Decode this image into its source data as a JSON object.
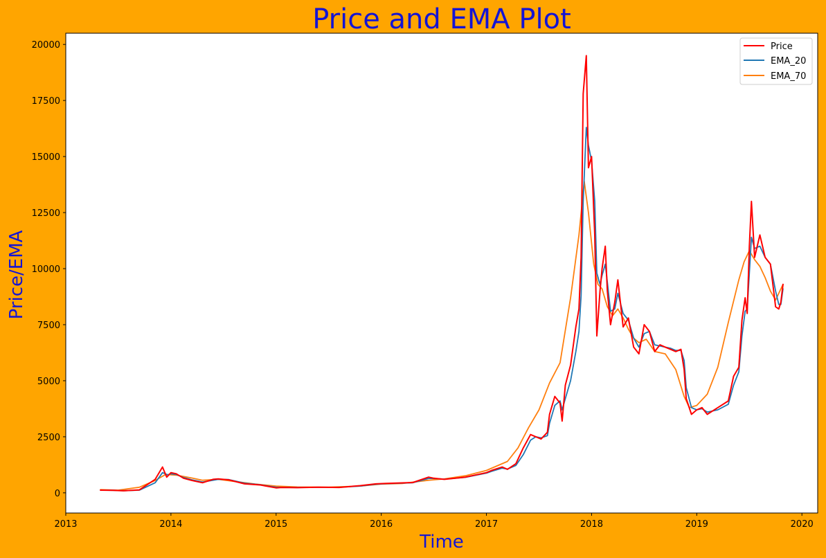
{
  "colors": {
    "background": "#ffa500",
    "plot_background": "#ffffff",
    "title": "#1414d4",
    "price": "#ff0000",
    "ema_20": "#1f77b4",
    "ema_70": "#ff7f0e"
  },
  "chart_data": {
    "type": "line",
    "title": "Price and EMA Plot",
    "xlabel": "Time",
    "ylabel": "Price/EMA",
    "xlim": [
      2013.0,
      2020.15
    ],
    "ylim": [
      -900,
      20500
    ],
    "x_ticks": [
      2013,
      2014,
      2015,
      2016,
      2017,
      2018,
      2019,
      2020
    ],
    "x_tick_labels": [
      "2013",
      "2014",
      "2015",
      "2016",
      "2017",
      "2018",
      "2019",
      "2020"
    ],
    "y_ticks": [
      0,
      2500,
      5000,
      7500,
      10000,
      12500,
      15000,
      17500,
      20000
    ],
    "y_tick_labels": [
      "0",
      "2500",
      "5000",
      "7500",
      "10000",
      "12500",
      "15000",
      "17500",
      "20000"
    ],
    "grid": false,
    "legend_position": "top-right",
    "series": [
      {
        "name": "Price",
        "color": "#ff0000",
        "x": [
          2013.33,
          2013.45,
          2013.55,
          2013.7,
          2013.85,
          2013.92,
          2013.96,
          2014.0,
          2014.05,
          2014.12,
          2014.2,
          2014.3,
          2014.4,
          2014.45,
          2014.55,
          2014.7,
          2014.85,
          2015.0,
          2015.05,
          2015.2,
          2015.4,
          2015.6,
          2015.8,
          2015.95,
          2016.05,
          2016.3,
          2016.45,
          2016.5,
          2016.6,
          2016.8,
          2017.0,
          2017.05,
          2017.15,
          2017.2,
          2017.28,
          2017.35,
          2017.42,
          2017.47,
          2017.52,
          2017.58,
          2017.6,
          2017.65,
          2017.7,
          2017.72,
          2017.75,
          2017.8,
          2017.85,
          2017.88,
          2017.9,
          2017.92,
          2017.95,
          2017.97,
          2018.0,
          2018.03,
          2018.05,
          2018.08,
          2018.1,
          2018.13,
          2018.15,
          2018.18,
          2018.22,
          2018.25,
          2018.3,
          2018.35,
          2018.4,
          2018.45,
          2018.5,
          2018.55,
          2018.6,
          2018.65,
          2018.7,
          2018.75,
          2018.8,
          2018.85,
          2018.88,
          2018.9,
          2018.95,
          2019.0,
          2019.05,
          2019.1,
          2019.2,
          2019.3,
          2019.35,
          2019.4,
          2019.43,
          2019.46,
          2019.48,
          2019.5,
          2019.52,
          2019.55,
          2019.6,
          2019.65,
          2019.7,
          2019.75,
          2019.78,
          2019.8,
          2019.82
        ],
        "y": [
          120,
          110,
          90,
          130,
          600,
          1150,
          700,
          900,
          850,
          650,
          550,
          450,
          600,
          620,
          580,
          400,
          350,
          220,
          240,
          230,
          250,
          240,
          320,
          400,
          420,
          460,
          700,
          650,
          600,
          700,
          900,
          1000,
          1150,
          1050,
          1300,
          2000,
          2600,
          2500,
          2400,
          2700,
          3500,
          4300,
          4000,
          3200,
          4800,
          5700,
          7400,
          8200,
          10500,
          17800,
          19500,
          14500,
          15000,
          11500,
          7000,
          9000,
          10000,
          11000,
          9000,
          7500,
          8500,
          9500,
          7400,
          7800,
          6500,
          6200,
          7500,
          7200,
          6300,
          6600,
          6500,
          6400,
          6300,
          6400,
          5500,
          4200,
          3500,
          3700,
          3800,
          3500,
          3800,
          4100,
          5200,
          5600,
          7700,
          8700,
          8000,
          11000,
          13000,
          10500,
          11500,
          10500,
          10200,
          8300,
          8200,
          8500,
          9300
        ]
      },
      {
        "name": "EMA_20",
        "color": "#1f77b4",
        "x": [
          2013.33,
          2013.45,
          2013.55,
          2013.7,
          2013.85,
          2013.92,
          2013.97,
          2014.0,
          2014.05,
          2014.12,
          2014.2,
          2014.3,
          2014.4,
          2014.45,
          2014.55,
          2014.7,
          2014.85,
          2015.0,
          2015.05,
          2015.2,
          2015.4,
          2015.6,
          2015.8,
          2015.95,
          2016.05,
          2016.3,
          2016.45,
          2016.5,
          2016.6,
          2016.8,
          2017.0,
          2017.05,
          2017.15,
          2017.2,
          2017.28,
          2017.35,
          2017.42,
          2017.47,
          2017.52,
          2017.58,
          2017.6,
          2017.65,
          2017.7,
          2017.72,
          2017.75,
          2017.8,
          2017.85,
          2017.88,
          2017.9,
          2017.92,
          2017.95,
          2017.97,
          2018.0,
          2018.03,
          2018.05,
          2018.08,
          2018.1,
          2018.13,
          2018.15,
          2018.18,
          2018.22,
          2018.25,
          2018.3,
          2018.35,
          2018.4,
          2018.45,
          2018.5,
          2018.55,
          2018.6,
          2018.65,
          2018.7,
          2018.75,
          2018.8,
          2018.85,
          2018.88,
          2018.9,
          2018.95,
          2019.0,
          2019.05,
          2019.1,
          2019.2,
          2019.3,
          2019.35,
          2019.4,
          2019.43,
          2019.46,
          2019.48,
          2019.5,
          2019.52,
          2019.55,
          2019.6,
          2019.65,
          2019.7,
          2019.75,
          2019.78,
          2019.8,
          2019.82
        ],
        "y": [
          120,
          112,
          95,
          120,
          450,
          900,
          800,
          850,
          820,
          680,
          580,
          480,
          560,
          600,
          590,
          430,
          360,
          250,
          245,
          235,
          245,
          245,
          300,
          380,
          410,
          450,
          640,
          640,
          610,
          690,
          880,
          960,
          1100,
          1060,
          1220,
          1700,
          2350,
          2500,
          2450,
          2550,
          3100,
          3900,
          4100,
          3700,
          4200,
          5000,
          6300,
          7200,
          8800,
          13000,
          16300,
          15500,
          14800,
          13000,
          9800,
          9300,
          9700,
          10200,
          9400,
          8100,
          8200,
          8900,
          8000,
          7700,
          6900,
          6500,
          7100,
          7200,
          6600,
          6550,
          6500,
          6450,
          6350,
          6350,
          5900,
          4700,
          3800,
          3700,
          3750,
          3600,
          3700,
          3950,
          4800,
          5400,
          7000,
          8100,
          8200,
          9800,
          11400,
          10900,
          11000,
          10500,
          10200,
          9000,
          8400,
          8400,
          9100
        ]
      },
      {
        "name": "EMA_70",
        "color": "#ff7f0e",
        "x": [
          2013.33,
          2013.5,
          2013.7,
          2013.85,
          2013.95,
          2014.05,
          2014.2,
          2014.3,
          2014.45,
          2014.6,
          2014.8,
          2015.0,
          2015.2,
          2015.5,
          2015.8,
          2016.0,
          2016.2,
          2016.45,
          2016.6,
          2016.8,
          2017.0,
          2017.2,
          2017.3,
          2017.4,
          2017.5,
          2017.6,
          2017.7,
          2017.8,
          2017.88,
          2017.93,
          2017.97,
          2018.02,
          2018.06,
          2018.1,
          2018.15,
          2018.2,
          2018.25,
          2018.3,
          2018.35,
          2018.4,
          2018.45,
          2018.52,
          2018.6,
          2018.7,
          2018.8,
          2018.88,
          2018.93,
          2019.0,
          2019.1,
          2019.2,
          2019.3,
          2019.4,
          2019.45,
          2019.5,
          2019.55,
          2019.6,
          2019.65,
          2019.7,
          2019.75,
          2019.82
        ],
        "y": [
          140,
          120,
          250,
          550,
          820,
          790,
          660,
          560,
          600,
          510,
          390,
          300,
          260,
          255,
          300,
          390,
          420,
          560,
          620,
          760,
          1000,
          1400,
          2000,
          2900,
          3700,
          4900,
          5800,
          8700,
          11500,
          13900,
          12500,
          10200,
          9300,
          9100,
          8300,
          7900,
          8200,
          7800,
          7300,
          6900,
          6700,
          6850,
          6300,
          6200,
          5500,
          4300,
          3800,
          3900,
          4400,
          5600,
          7600,
          9500,
          10300,
          10800,
          10400,
          10100,
          9600,
          9000,
          8600,
          9300
        ]
      }
    ]
  }
}
